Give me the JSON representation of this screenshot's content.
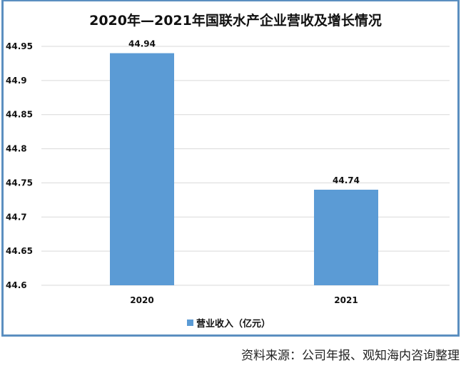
{
  "chart_data": {
    "type": "bar",
    "title": "2020年—2021年国联水产企业营收及增长情况",
    "categories": [
      "2020",
      "2021"
    ],
    "series": [
      {
        "name": "营业收入（亿元）",
        "values": [
          44.94,
          44.74
        ]
      }
    ],
    "data_labels": [
      "44.94",
      "44.74"
    ],
    "ylim": [
      44.6,
      44.95
    ],
    "yticks": [
      "44.95",
      "44.9",
      "44.85",
      "44.8",
      "44.75",
      "44.7",
      "44.65",
      "44.6"
    ],
    "grid": true,
    "legend": "bottom",
    "color": "#5b9bd5"
  },
  "source": "资料来源：公司年报、观知海内咨询整理"
}
